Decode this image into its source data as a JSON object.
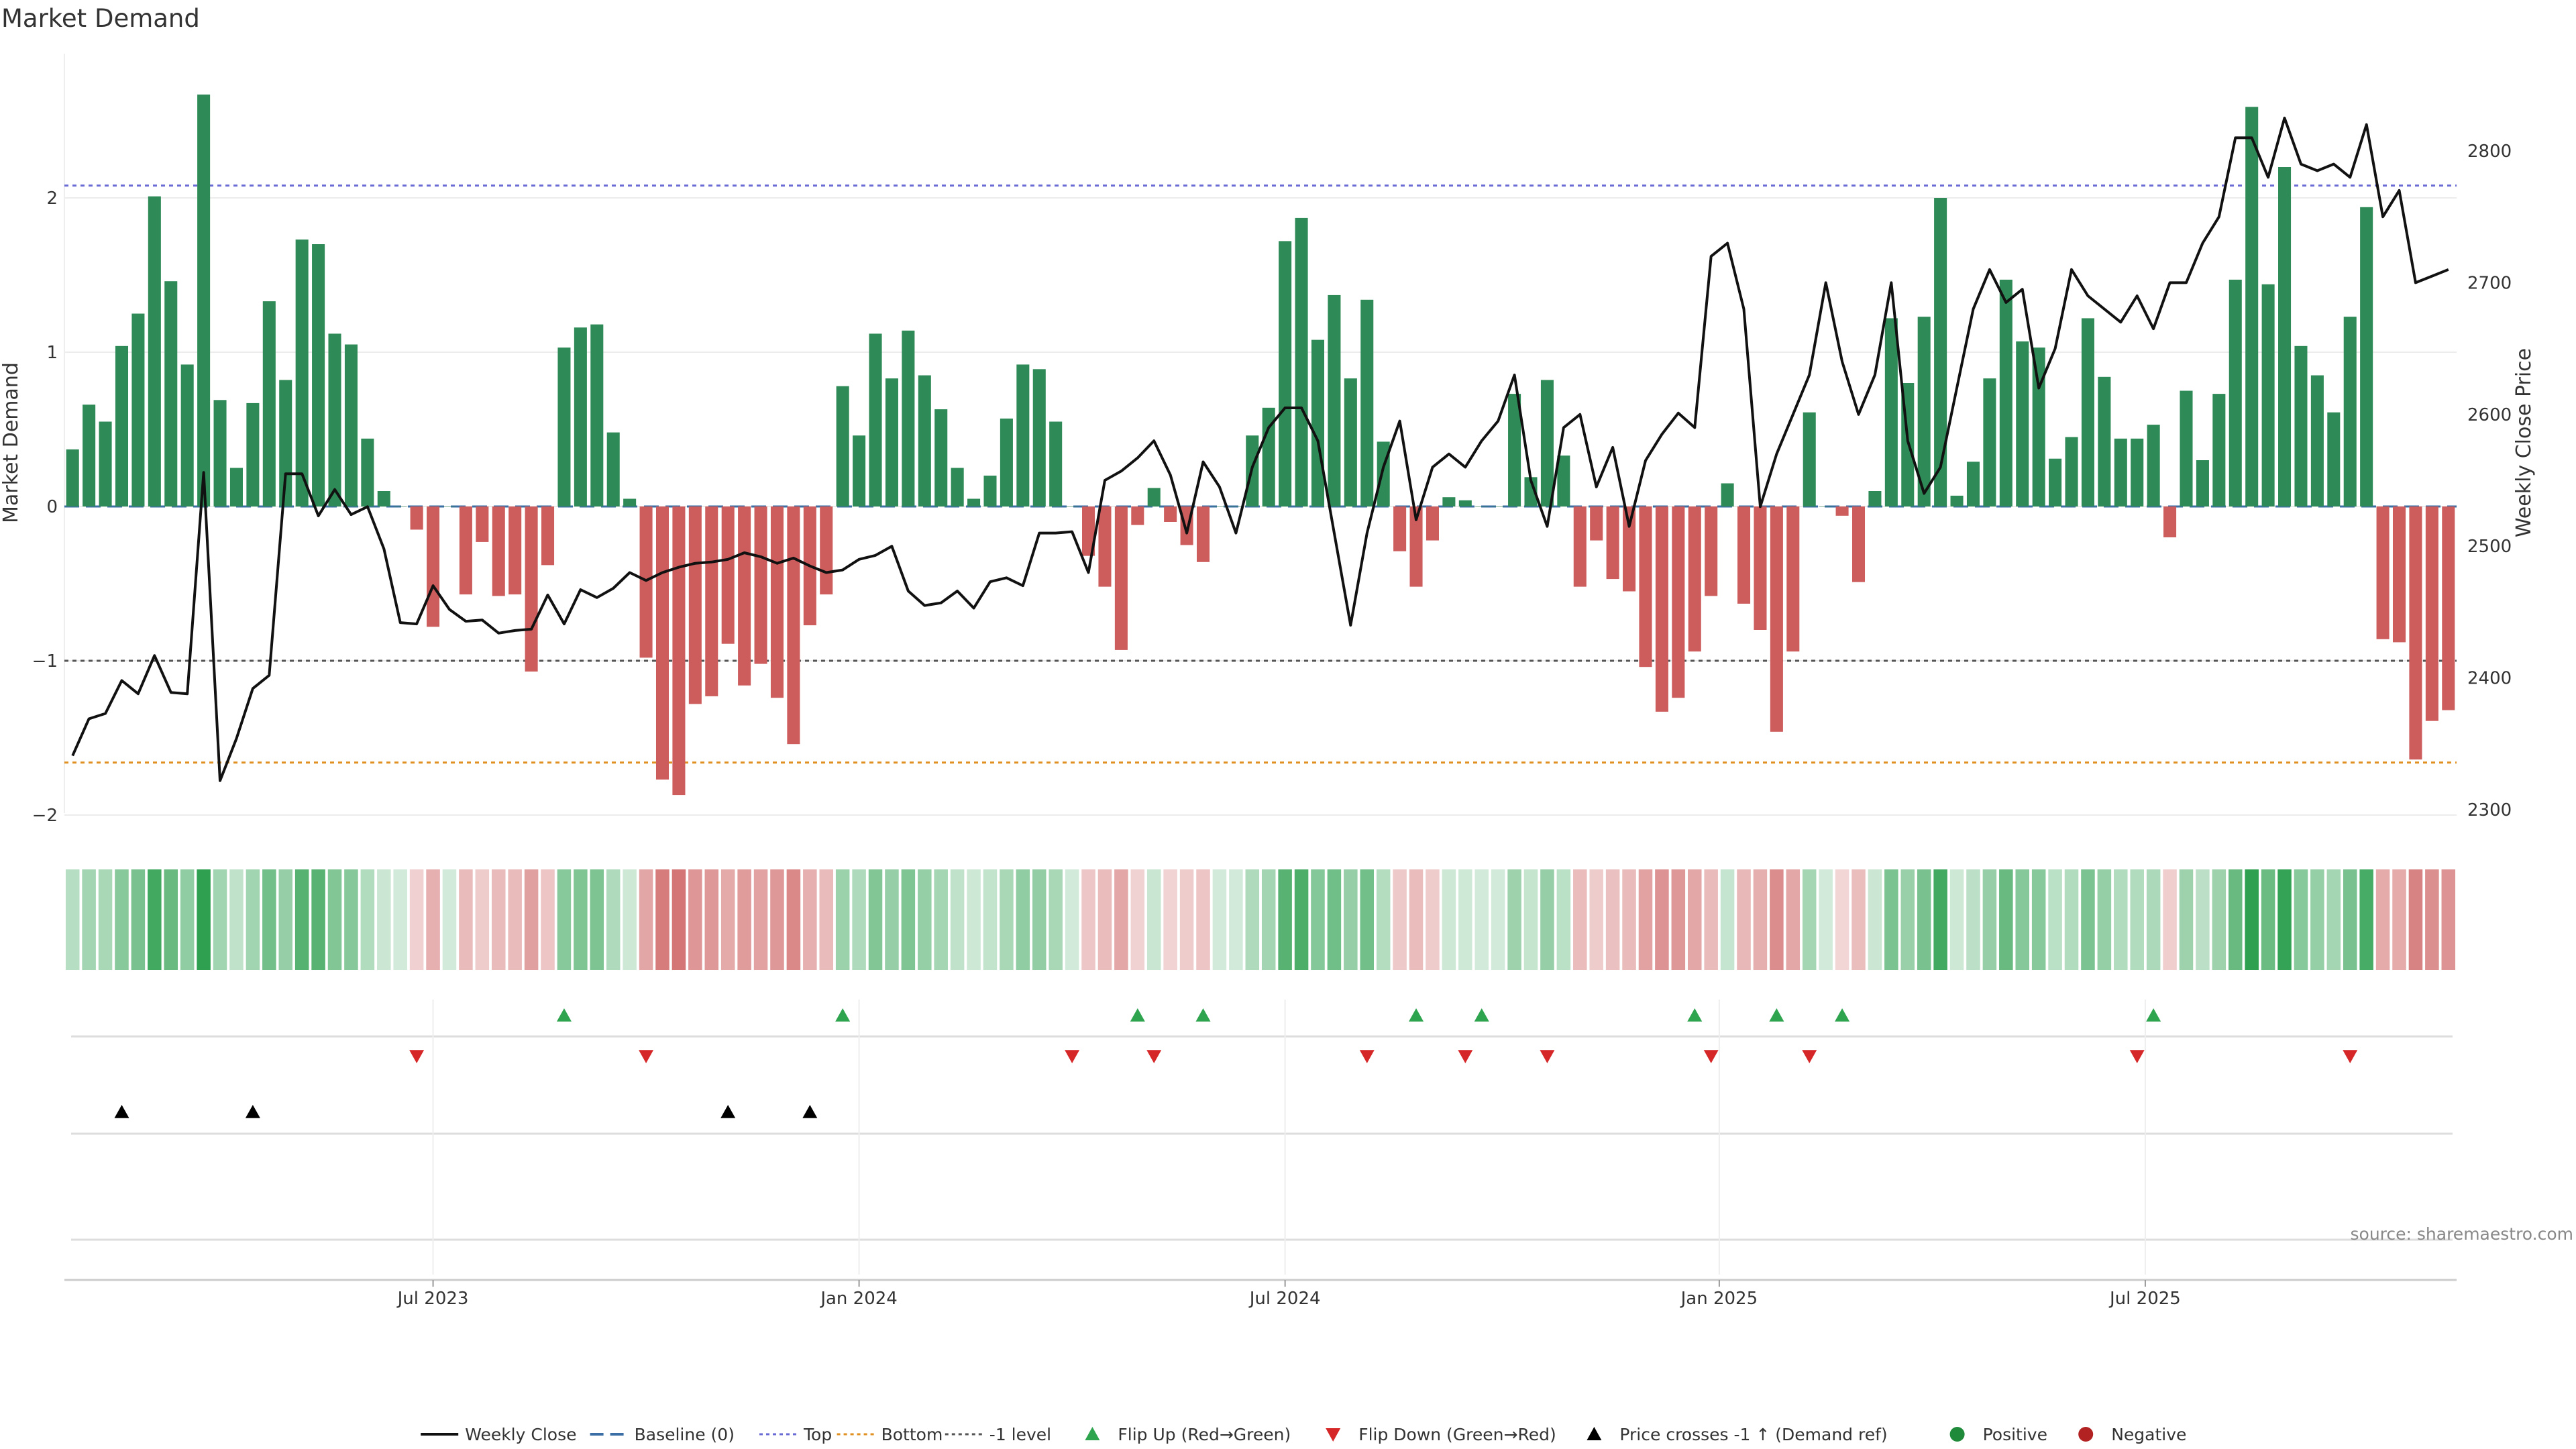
{
  "chart_data": {
    "type": "bar",
    "title": "Market Demand",
    "ylabel_left": "Market Demand",
    "ylabel_right": "Weekly Close Price",
    "ylim_left": [
      -2.3,
      2.9
    ],
    "ylim_right": [
      2290,
      2880
    ],
    "yticks_left": [
      {
        "v": 2,
        "label": "2"
      },
      {
        "v": 1,
        "label": "1"
      },
      {
        "v": 0,
        "label": "0"
      },
      {
        "v": -1,
        "label": "−1"
      },
      {
        "v": -2,
        "label": "−2"
      }
    ],
    "yticks_right": [
      2300,
      2400,
      2500,
      2600,
      2700,
      2800
    ],
    "x_labels": [
      {
        "week": 22,
        "label": "Jul 2023"
      },
      {
        "week": 48,
        "label": "Jan 2024"
      },
      {
        "week": 74,
        "label": "Jul 2024"
      },
      {
        "week": 100.5,
        "label": "Jan 2025"
      },
      {
        "week": 126.5,
        "label": "Jul 2025"
      }
    ],
    "reference_lines": {
      "top": 2.08,
      "bottom": -1.66,
      "minus_one": -1.0,
      "baseline": 0
    },
    "demand": [
      0.37,
      0.66,
      0.55,
      1.04,
      1.25,
      2.01,
      1.46,
      0.92,
      2.67,
      0.69,
      0.25,
      0.67,
      1.33,
      0.82,
      1.73,
      1.7,
      1.12,
      1.05,
      0.44,
      0.1,
      0.0,
      -0.15,
      -0.78,
      0.0,
      -0.57,
      -0.23,
      -0.58,
      -0.57,
      -1.07,
      -0.38,
      1.03,
      1.16,
      1.18,
      0.48,
      0.05,
      -0.98,
      -1.77,
      -1.87,
      -1.28,
      -1.23,
      -0.89,
      -1.16,
      -1.02,
      -1.24,
      -1.54,
      -0.77,
      -0.57,
      0.78,
      0.46,
      1.12,
      0.83,
      1.14,
      0.85,
      0.63,
      0.25,
      0.05,
      0.2,
      0.57,
      0.92,
      0.89,
      0.55,
      0.0,
      -0.32,
      -0.52,
      -0.93,
      -0.12,
      0.12,
      -0.1,
      -0.25,
      -0.36,
      0.0,
      0.0,
      0.46,
      0.64,
      1.72,
      1.87,
      1.08,
      1.37,
      0.83,
      1.34,
      0.42,
      -0.29,
      -0.52,
      -0.22,
      0.06,
      0.04,
      0.0,
      0.0,
      0.73,
      0.19,
      0.82,
      0.33,
      -0.52,
      -0.22,
      -0.47,
      -0.55,
      -1.04,
      -1.33,
      -1.24,
      -0.94,
      -0.58,
      0.15,
      -0.63,
      -0.8,
      -1.46,
      -0.94,
      0.61,
      0.0,
      -0.06,
      -0.49,
      0.1,
      1.22,
      0.8,
      1.23,
      2.0,
      0.07,
      0.29,
      0.83,
      1.47,
      1.07,
      1.03,
      0.31,
      0.45,
      1.22,
      0.84,
      0.44,
      0.44,
      0.53,
      -0.2,
      0.75,
      0.3,
      0.73,
      1.47,
      2.59,
      1.44,
      2.2,
      1.04,
      0.85,
      0.61,
      1.23,
      1.94,
      -0.86,
      -0.88,
      -1.64,
      -1.39,
      -1.32
    ],
    "weekly_close": [
      2341,
      2369,
      2373,
      2398,
      2388,
      2417,
      2389,
      2388,
      2556,
      2322,
      2354,
      2392,
      2402,
      2555,
      2555,
      2523,
      2543,
      2524,
      2530,
      2498,
      2442,
      2441,
      2470,
      2452,
      2443,
      2444,
      2434,
      2436,
      2437,
      2463,
      2441,
      2467,
      2461,
      2468,
      2480,
      2474,
      2480,
      2484,
      2487,
      2488,
      2490,
      2495,
      2492,
      2487,
      2491,
      2485,
      2480,
      2482,
      2490,
      2493,
      2500,
      2466,
      2455,
      2457,
      2466,
      2453,
      2473,
      2476,
      2470,
      2510,
      2510,
      2511,
      2480,
      2550,
      2557,
      2567,
      2580,
      2554,
      2510,
      2564,
      2545,
      2510,
      2560,
      2590,
      2605,
      2605,
      2580,
      2510,
      2440,
      2510,
      2560,
      2595,
      2520,
      2560,
      2570,
      2560,
      2580,
      2595,
      2630,
      2550,
      2515,
      2590,
      2600,
      2545,
      2575,
      2515,
      2565,
      2585,
      2601,
      2590,
      2720,
      2730,
      2680,
      2530,
      2570,
      2600,
      2630,
      2700,
      2640,
      2600,
      2630,
      2700,
      2580,
      2540,
      2560,
      2620,
      2680,
      2710,
      2685,
      2695,
      2620,
      2650,
      2710,
      2690,
      2680,
      2670,
      2690,
      2665,
      2700,
      2700,
      2730,
      2750,
      2810,
      2810,
      2780,
      2825,
      2790,
      2785,
      2790,
      2780,
      2820,
      2750,
      2770,
      2700,
      2705,
      2710
    ],
    "flip_up_weeks": [
      30,
      47,
      65,
      69,
      82,
      86,
      99,
      104,
      108,
      127
    ],
    "flip_down_weeks": [
      21,
      35,
      61,
      66,
      79,
      85,
      90,
      100,
      106,
      126,
      139
    ],
    "price_cross_weeks": [
      3,
      11,
      40,
      45
    ],
    "legend": [
      {
        "label": "Weekly Close",
        "kind": "line",
        "color": "#111111"
      },
      {
        "label": "Baseline (0)",
        "kind": "dash",
        "color": "#3a6ea5"
      },
      {
        "label": "Top",
        "kind": "dot",
        "color": "#6b6bd6"
      },
      {
        "label": "Bottom",
        "kind": "dot",
        "color": "#e09020"
      },
      {
        "label": "-1 level",
        "kind": "dot",
        "color": "#555555"
      },
      {
        "label": "Flip Up (Red→Green)",
        "kind": "tri-up",
        "color": "#2ea44f"
      },
      {
        "label": "Flip Down (Green→Red)",
        "kind": "tri-down",
        "color": "#d62728"
      },
      {
        "label": "Price crosses -1 ↑ (Demand ref)",
        "kind": "tri-up",
        "color": "#000000"
      },
      {
        "label": "Positive",
        "kind": "circle",
        "color": "#1f8b3a"
      },
      {
        "label": "Negative",
        "kind": "circle",
        "color": "#b22222"
      }
    ],
    "source": "source: sharemaestro.com"
  },
  "colors": {
    "positive_bar": "#2e8b57",
    "negative_bar": "#cd5c5c",
    "line": "#111111",
    "top": "#6b6bd6",
    "bottom": "#e09020",
    "minus_one": "#555555",
    "baseline": "#3a6ea5",
    "flip_up": "#2ea44f",
    "flip_down": "#d62728",
    "cross": "#000000"
  }
}
